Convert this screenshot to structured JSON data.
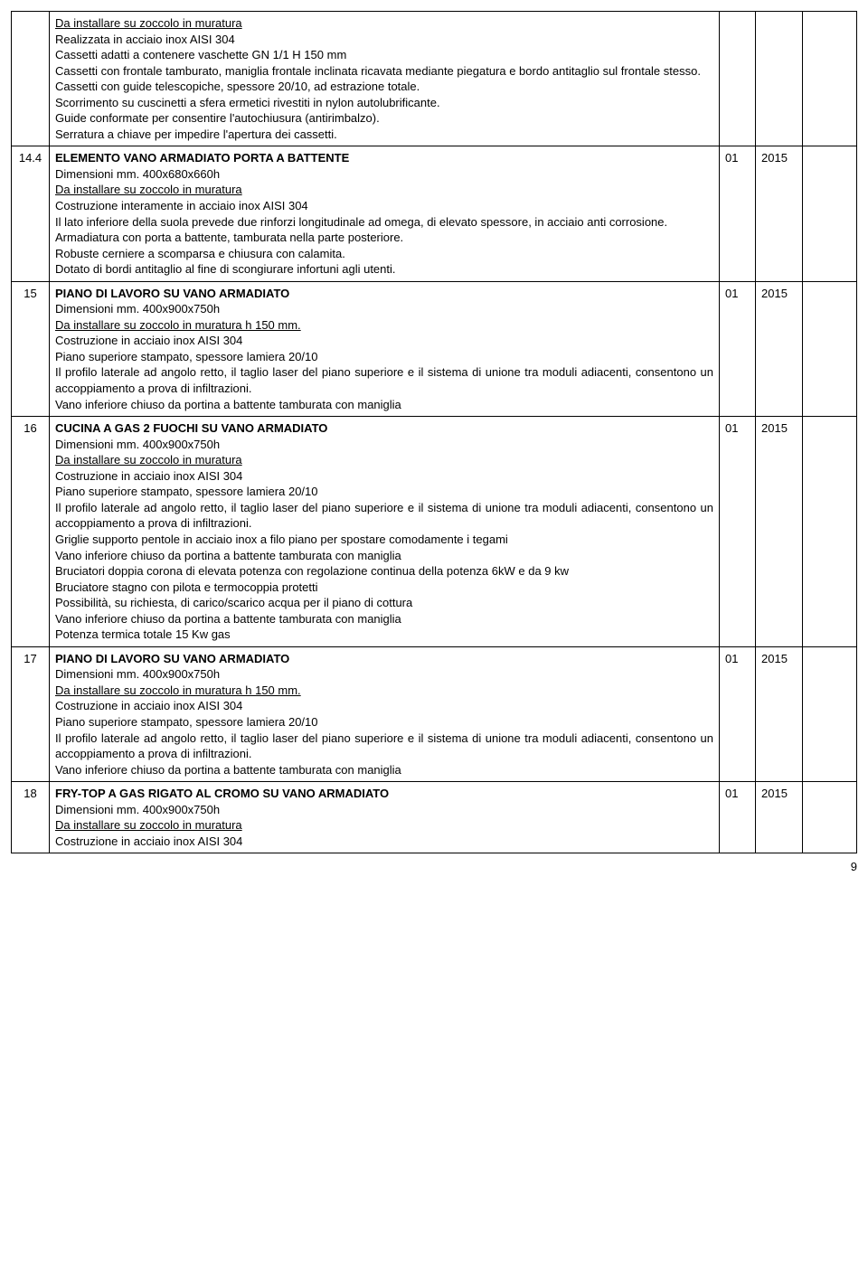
{
  "rows": [
    {
      "num": "",
      "title": "",
      "underline_lead": "Da installare su zoccolo in muratura",
      "body": "Realizzata in acciaio inox AISI 304\nCassetti adatti a contenere vaschette GN 1/1 H 150 mm\nCassetti con frontale tamburato, maniglia frontale inclinata ricavata mediante piegatura e bordo antitaglio sul frontale stesso.\nCassetti con guide telescopiche, spessore 20/10, ad estrazione totale.\nScorrimento su cuscinetti a sfera ermetici rivestiti in nylon autolubrificante.\nGuide conformate per consentire l'autochiusura (antirimbalzo).\nSerratura a chiave per impedire l'apertura dei cassetti.",
      "qty": "",
      "year": ""
    },
    {
      "num": "14.4",
      "title": "ELEMENTO VANO ARMADIATO PORTA A BATTENTE",
      "subtitle": "Dimensioni mm. 400x680x660h",
      "underline_lead": "Da installare su zoccolo in muratura",
      "body": "Costruzione interamente in acciaio inox AISI 304\nIl lato inferiore della suola prevede due rinforzi longitudinale ad omega, di elevato spessore, in acciaio anti corrosione.\nArmadiatura con porta a battente, tamburata nella parte posteriore.\nRobuste cerniere a scomparsa e chiusura con calamita.\nDotato di bordi antitaglio al fine di scongiurare infortuni agli utenti.",
      "qty": "01",
      "year": "2015"
    },
    {
      "num": "15",
      "title": "PIANO DI LAVORO SU VANO ARMADIATO",
      "subtitle": "Dimensioni mm. 400x900x750h",
      "underline_lead": "Da installare su zoccolo in muratura h 150 mm.",
      "body": "Costruzione in acciaio inox AISI 304\nPiano superiore stampato, spessore lamiera 20/10\nIl profilo laterale ad angolo retto, il taglio laser del piano superiore e il sistema di unione tra moduli adiacenti, consentono un accoppiamento a prova di infiltrazioni.\nVano inferiore chiuso da portina a battente tamburata con maniglia",
      "qty": "01",
      "year": "2015"
    },
    {
      "num": "16",
      "title": "CUCINA A GAS 2 FUOCHI SU VANO ARMADIATO",
      "subtitle": "Dimensioni mm. 400x900x750h",
      "underline_lead": "Da installare su zoccolo in muratura",
      "body": "Costruzione in acciaio inox AISI 304\nPiano superiore stampato, spessore lamiera 20/10\nIl profilo laterale ad angolo retto, il taglio laser del piano superiore e il sistema di unione tra moduli adiacenti, consentono un accoppiamento a prova di infiltrazioni.\nGriglie supporto pentole in acciaio inox a filo piano per spostare comodamente i tegami\nVano inferiore chiuso da portina a battente tamburata con maniglia\nBruciatori  doppia corona di elevata potenza con regolazione continua della potenza 6kW  e da  9 kw\nBruciatore  stagno con  pilota e termocoppia protetti\nPossibilità, su richiesta, di carico/scarico acqua per il piano di cottura\nVano inferiore chiuso da portina a battente tamburata con maniglia\nPotenza termica totale 15 Kw gas",
      "qty": "01",
      "year": "2015"
    },
    {
      "num": "17",
      "title": "PIANO DI LAVORO SU VANO ARMADIATO",
      "subtitle": "Dimensioni mm. 400x900x750h",
      "underline_lead": "Da installare su zoccolo in muratura h 150 mm.",
      "body": "Costruzione in acciaio inox AISI 304\nPiano superiore stampato, spessore lamiera 20/10\nIl profilo laterale ad angolo retto, il taglio laser del piano superiore e il sistema di unione tra moduli adiacenti, consentono un accoppiamento a prova di infiltrazioni.\nVano inferiore chiuso da portina a battente tamburata con maniglia",
      "qty": "01",
      "year": "2015"
    },
    {
      "num": "18",
      "title": "FRY-TOP A GAS RIGATO AL CROMO SU VANO ARMADIATO",
      "subtitle": "Dimensioni mm. 400x900x750h",
      "underline_lead": "Da installare su zoccolo in muratura",
      "body": "Costruzione in acciaio inox AISI 304",
      "qty": "01",
      "year": "2015"
    }
  ],
  "page_number": "9"
}
